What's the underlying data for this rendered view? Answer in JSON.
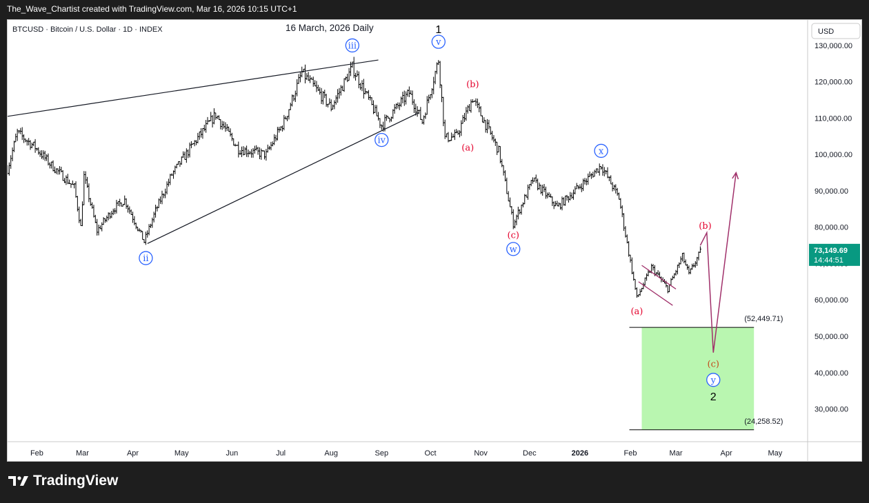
{
  "header": {
    "credit": "The_Wave_Chartist created with TradingView.com, Mar 16, 2026 10:15 UTC+1"
  },
  "footer": {
    "brand": "TradingView",
    "logo_icon": "tradingview-logo-icon"
  },
  "colors": {
    "background_dark": "#1e1e1e",
    "chart_bg": "#ffffff",
    "candle": "#000000",
    "circle_label": "#2962ff",
    "red_label": "#e4002b",
    "target_zone": "#b9f6b0",
    "arrow": "#a0306a",
    "price_badge": "#089981"
  },
  "chart_data": {
    "type": "line",
    "symbol": "BTCUSD · Bitcoin / U.S. Dollar · 1D · INDEX",
    "title": "16 March, 2026 Daily",
    "currency_button": "USD",
    "y_axis": {
      "ylim": [
        21000,
        137000
      ],
      "ticks": [
        30000,
        40000,
        50000,
        60000,
        70000,
        80000,
        90000,
        100000,
        110000,
        120000,
        130000
      ],
      "tick_labels": [
        "30,000.00",
        "40,000.00",
        "50,000.00",
        "60,000.00",
        "70,000.00",
        "80,000.00",
        "90,000.00",
        "100,000.00",
        "110,000.00",
        "120,000.00",
        "130,000.00"
      ]
    },
    "x_axis": {
      "xlim": [
        "2025-01-14",
        "2026-05-21"
      ],
      "ticks": [
        "2025-02-01",
        "2025-03-01",
        "2025-04-01",
        "2025-05-01",
        "2025-06-01",
        "2025-07-01",
        "2025-08-01",
        "2025-09-01",
        "2025-10-01",
        "2025-11-01",
        "2025-12-01",
        "2026-01-01",
        "2026-02-01",
        "2026-03-01",
        "2026-04-01",
        "2026-05-01"
      ],
      "tick_labels": [
        "Feb",
        "Mar",
        "Apr",
        "May",
        "Jun",
        "Jul",
        "Aug",
        "Sep",
        "Oct",
        "Nov",
        "Dec",
        "2026",
        "Feb",
        "Mar",
        "Apr",
        "May"
      ],
      "bold_labels": [
        "2026"
      ]
    },
    "price_path": [
      [
        "2025-01-14",
        96000
      ],
      [
        "2025-01-20",
        106000
      ],
      [
        "2025-01-31",
        102000
      ],
      [
        "2025-02-10",
        97000
      ],
      [
        "2025-02-24",
        91000
      ],
      [
        "2025-02-28",
        80000
      ],
      [
        "2025-03-02",
        94000
      ],
      [
        "2025-03-10",
        79000
      ],
      [
        "2025-03-20",
        85000
      ],
      [
        "2025-03-27",
        87500
      ],
      [
        "2025-04-08",
        76000
      ],
      [
        "2025-04-15",
        84500
      ],
      [
        "2025-04-25",
        94500
      ],
      [
        "2025-05-10",
        104000
      ],
      [
        "2025-05-22",
        111000
      ],
      [
        "2025-06-05",
        101500
      ],
      [
        "2025-06-22",
        100000
      ],
      [
        "2025-07-03",
        109000
      ],
      [
        "2025-07-14",
        122500
      ],
      [
        "2025-08-01",
        113000
      ],
      [
        "2025-08-14",
        124000
      ],
      [
        "2025-09-01",
        108000
      ],
      [
        "2025-09-18",
        117000
      ],
      [
        "2025-09-26",
        109000
      ],
      [
        "2025-10-06",
        126000
      ],
      [
        "2025-10-10",
        104500
      ],
      [
        "2025-10-17",
        105000
      ],
      [
        "2025-10-27",
        115500
      ],
      [
        "2025-11-12",
        101000
      ],
      [
        "2025-11-21",
        81000
      ],
      [
        "2025-12-03",
        93000
      ],
      [
        "2025-12-18",
        85500
      ],
      [
        "2026-01-05",
        93000
      ],
      [
        "2026-01-14",
        97000
      ],
      [
        "2026-01-25",
        88000
      ],
      [
        "2026-02-05",
        60500
      ],
      [
        "2026-02-14",
        69000
      ],
      [
        "2026-02-24",
        63000
      ],
      [
        "2026-03-05",
        72000
      ],
      [
        "2026-03-09",
        67000
      ],
      [
        "2026-03-16",
        73150
      ]
    ],
    "trend_lines": [
      {
        "from": [
          "2025-01-14",
          110500
        ],
        "to": [
          "2025-08-30",
          126000
        ]
      },
      {
        "from": [
          "2025-04-10",
          75500
        ],
        "to": [
          "2025-09-24",
          111500
        ]
      }
    ],
    "channel": [
      [
        "2026-02-08",
        69500
      ],
      [
        "2026-03-01",
        63000
      ],
      [
        "2026-02-06",
        65000
      ],
      [
        "2026-02-27",
        58500
      ]
    ],
    "projection": [
      [
        "2026-03-16",
        75000
      ],
      [
        "2026-03-20",
        78500
      ],
      [
        "2026-03-24",
        45500
      ],
      [
        "2026-04-07",
        95000
      ]
    ],
    "target_zone": {
      "x0": "2026-02-08",
      "x1": "2026-04-18",
      "y_top": 52449.71,
      "y_bottom": 24258.52
    },
    "target_labels": [
      "(52,449.71)",
      "(24,258.52)"
    ],
    "current_price": {
      "value": 73149.69,
      "label": "73,149.69",
      "countdown": "14:44:51"
    },
    "wave_labels": [
      {
        "text": "ii",
        "date": "2025-04-09",
        "price": 71500,
        "style": "circle"
      },
      {
        "text": "iii",
        "date": "2025-08-14",
        "price": 130000,
        "style": "circle"
      },
      {
        "text": "iv",
        "date": "2025-09-01",
        "price": 104000,
        "style": "circle"
      },
      {
        "text": "v",
        "date": "2025-10-06",
        "price": 131000,
        "style": "circle"
      },
      {
        "text": "1",
        "date": "2025-10-06",
        "price": 134500,
        "style": "black"
      },
      {
        "text": "(a)",
        "date": "2025-10-24",
        "price": 102000,
        "style": "red"
      },
      {
        "text": "(b)",
        "date": "2025-10-27",
        "price": 119500,
        "style": "red"
      },
      {
        "text": "(c)",
        "date": "2025-11-21",
        "price": 78000,
        "style": "red"
      },
      {
        "text": "w",
        "date": "2025-11-21",
        "price": 74000,
        "style": "circle"
      },
      {
        "text": "x",
        "date": "2026-01-14",
        "price": 101000,
        "style": "circle"
      },
      {
        "text": "(a)",
        "date": "2026-02-05",
        "price": 57000,
        "style": "red"
      },
      {
        "text": "(b)",
        "date": "2026-03-19",
        "price": 80500,
        "style": "red"
      },
      {
        "text": "(c)",
        "date": "2026-03-24",
        "price": 42500,
        "style": "orange"
      },
      {
        "text": "y",
        "date": "2026-03-24",
        "price": 38000,
        "style": "circle"
      },
      {
        "text": "2",
        "date": "2026-03-24",
        "price": 33500,
        "style": "black"
      }
    ]
  }
}
